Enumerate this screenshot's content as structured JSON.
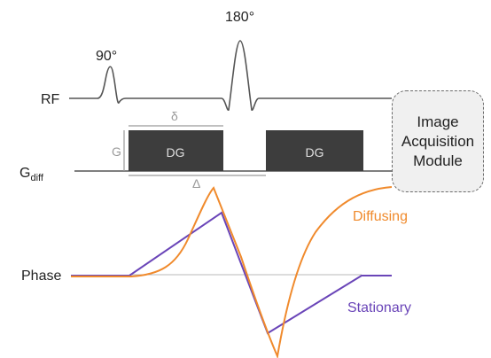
{
  "rf": {
    "label": "RF",
    "pulse_90_label": "90°",
    "pulse_180_label": "180°"
  },
  "gradient": {
    "label_main": "G",
    "label_sub": "diff",
    "amplitude_label": "G",
    "delta_small_label": "δ",
    "delta_big_label": "Δ",
    "lobes": [
      {
        "label": "DG"
      },
      {
        "label": "DG"
      }
    ]
  },
  "module": {
    "label": "Image\nAcquisition\nModule"
  },
  "phase": {
    "label": "Phase",
    "diffusing_label": "Diffusing",
    "stationary_label": "Stationary"
  },
  "colors": {
    "diffusing": "#f08a2c",
    "stationary": "#6a45b8",
    "gradient_fill": "#3d3d3d",
    "line": "#555555",
    "annotation": "#9a9a9a"
  }
}
